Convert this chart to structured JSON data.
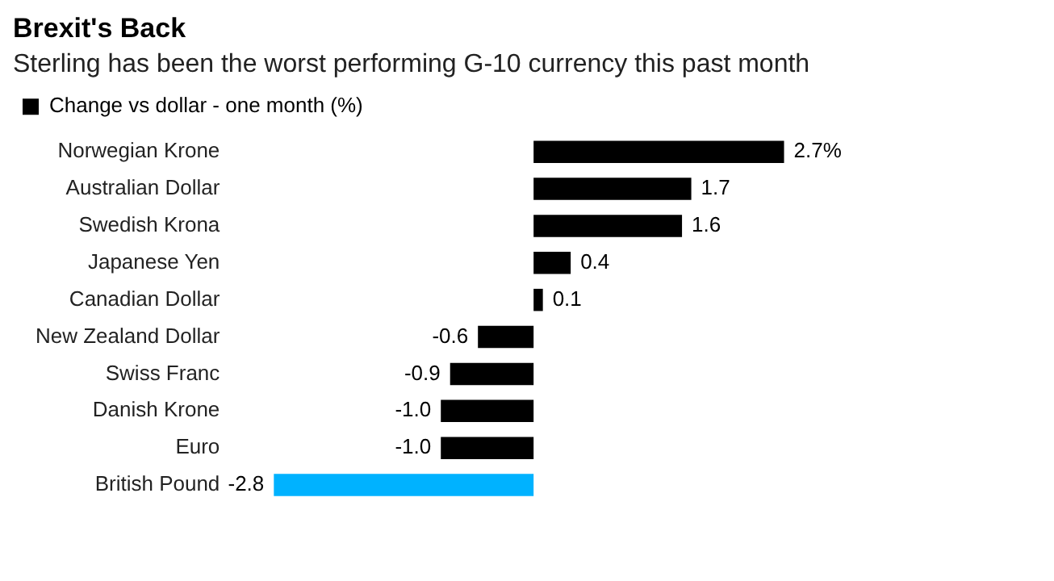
{
  "chart_data": {
    "type": "bar",
    "orientation": "horizontal",
    "title": "Brexit's Back",
    "subtitle": "Sterling has been the worst performing G-10 currency this past month",
    "categories": [
      "Norwegian Krone",
      "Australian Dollar",
      "Swedish Krona",
      "Japanese Yen",
      "Canadian Dollar",
      "New Zealand Dollar",
      "Swiss Franc",
      "Danish Krone",
      "Euro",
      "British Pound"
    ],
    "series": [
      {
        "name": "Change vs dollar - one month (%)",
        "values": [
          2.7,
          1.7,
          1.6,
          0.4,
          0.1,
          -0.6,
          -0.9,
          -1.0,
          -1.0,
          -2.8
        ],
        "colors": [
          "#000000",
          "#000000",
          "#000000",
          "#000000",
          "#000000",
          "#000000",
          "#000000",
          "#000000",
          "#000000",
          "#00b2ff"
        ],
        "value_labels": [
          "2.7%",
          "1.7",
          "1.6",
          "0.4",
          "0.1",
          "-0.6",
          "-0.9",
          "-1.0",
          "-1.0",
          "-2.8"
        ]
      }
    ],
    "legend": "top left"
  }
}
